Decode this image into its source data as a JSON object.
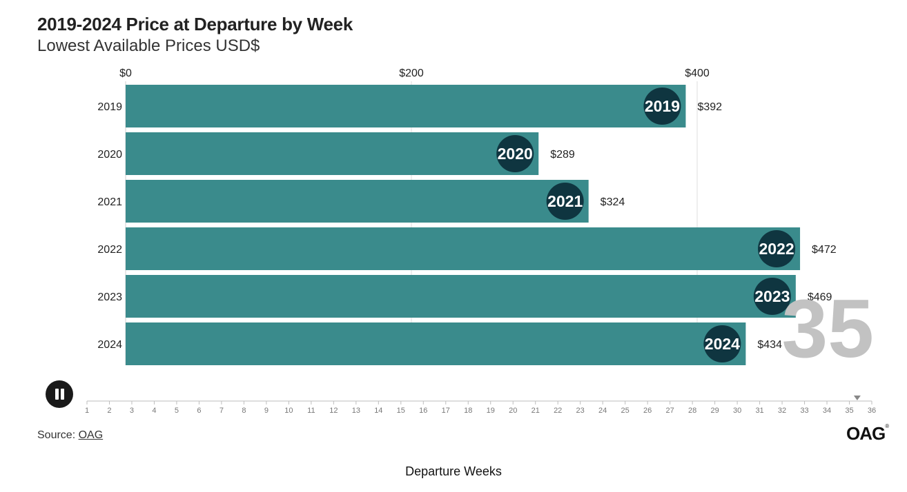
{
  "header": {
    "title": "2019-2024 Price at Departure by Week",
    "subtitle": "Lowest Available Prices USD$"
  },
  "chart_data": {
    "type": "bar",
    "orientation": "horizontal",
    "title": "2019-2024 Price at Departure by Week",
    "subtitle": "Lowest Available Prices USD$",
    "categories": [
      "2019",
      "2020",
      "2021",
      "2022",
      "2023",
      "2024"
    ],
    "values": [
      392,
      289,
      324,
      472,
      469,
      434
    ],
    "value_labels": [
      "$392",
      "$289",
      "$324",
      "$472",
      "$469",
      "$434"
    ],
    "xlim": [
      0,
      480
    ],
    "x_ticks": [
      0,
      200,
      400
    ],
    "x_tick_labels": [
      "$0",
      "$200",
      "$400"
    ],
    "axis_position": "top",
    "grid": true,
    "bar_color": "#3a8b8c",
    "badge_color": "#0f3540",
    "current_week": "35"
  },
  "player": {
    "state": "playing",
    "weeks": [
      "1",
      "2",
      "3",
      "4",
      "5",
      "6",
      "7",
      "8",
      "9",
      "10",
      "11",
      "12",
      "13",
      "14",
      "15",
      "16",
      "17",
      "18",
      "19",
      "20",
      "21",
      "22",
      "23",
      "24",
      "25",
      "26",
      "27",
      "28",
      "29",
      "30",
      "31",
      "32",
      "33",
      "34",
      "35",
      "36"
    ],
    "current_week": 35,
    "axis_label": "Departure Weeks"
  },
  "footer": {
    "source_prefix": "Source: ",
    "source_link": "OAG",
    "logo": "OAG"
  }
}
